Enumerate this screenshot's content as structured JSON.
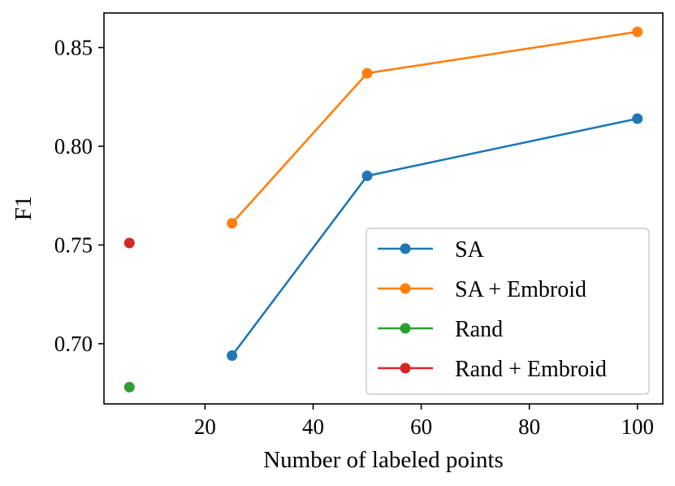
{
  "chart_data": {
    "type": "line",
    "title": "",
    "xlabel": "Number of labeled points",
    "ylabel": "F1",
    "xlim": [
      1.3,
      104.7
    ],
    "ylim": [
      0.6695,
      0.8675
    ],
    "x_ticks": [
      20,
      40,
      60,
      80,
      100
    ],
    "x_tick_labels": [
      "20",
      "40",
      "60",
      "80",
      "100"
    ],
    "y_ticks": [
      0.7,
      0.75,
      0.8,
      0.85
    ],
    "y_tick_labels": [
      "0.70",
      "0.75",
      "0.80",
      "0.85"
    ],
    "grid": false,
    "legend_position": "bottom-right",
    "series": [
      {
        "name": "SA",
        "color": "#1f77b4",
        "x": [
          25,
          50,
          100
        ],
        "y": [
          0.694,
          0.785,
          0.814
        ]
      },
      {
        "name": "SA + Embroid",
        "color": "#ff7f0e",
        "x": [
          25,
          50,
          100
        ],
        "y": [
          0.761,
          0.837,
          0.858
        ]
      },
      {
        "name": "Rand",
        "color": "#2ca02c",
        "x": [
          6
        ],
        "y": [
          0.678
        ]
      },
      {
        "name": "Rand + Embroid",
        "color": "#d62728",
        "x": [
          6
        ],
        "y": [
          0.751
        ]
      }
    ]
  }
}
